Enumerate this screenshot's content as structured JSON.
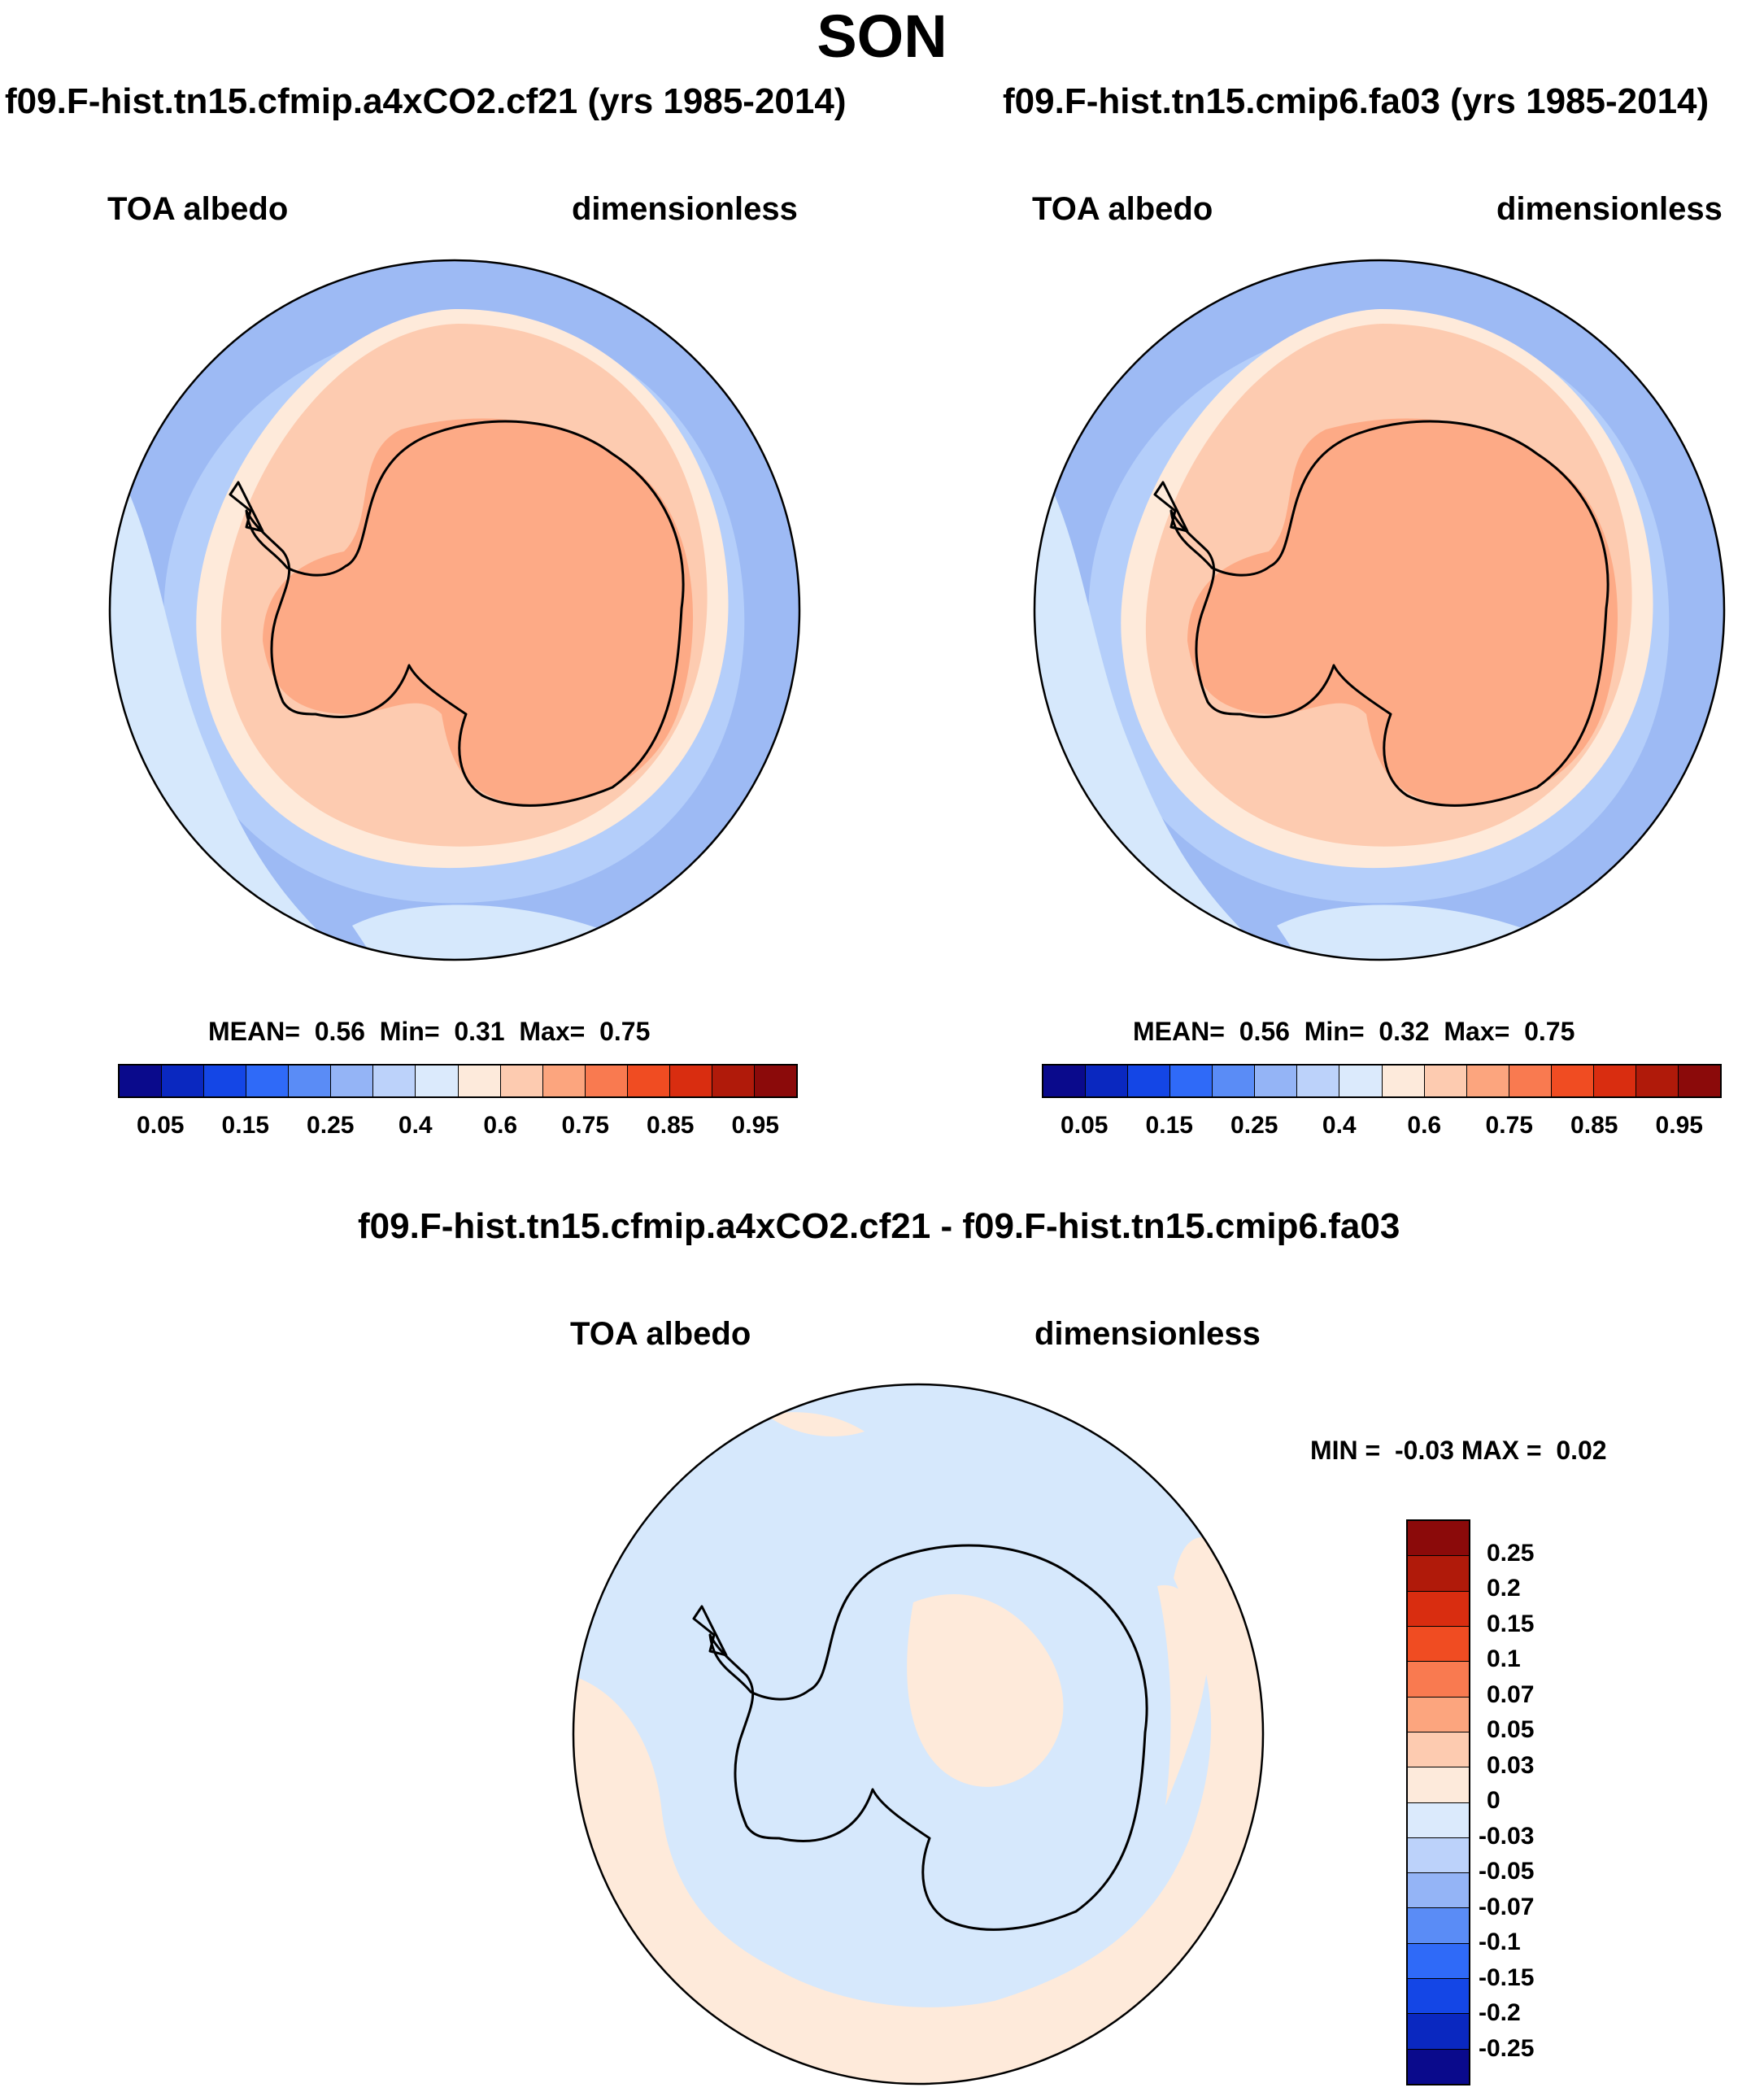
{
  "season": "SON",
  "colors": {
    "ice": "#fdaa86",
    "ice_edge": "#fdcbb0",
    "pale_orange": "#feeada",
    "pale_blue": "#d6e8fc",
    "light_blue": "#b4cefa",
    "mid_blue": "#9dbaf4",
    "coast": "#000000"
  },
  "panels": [
    {
      "title": "f09.F-hist.tn15.cfmip.a4xCO2.cf21 (yrs 1985-2014)",
      "variable": "TOA albedo",
      "units": "dimensionless",
      "stats": {
        "mean_label": "MEAN=",
        "mean": "0.56",
        "min_label": "Min=",
        "min": "0.31",
        "max_label": "Max=",
        "max": "0.75"
      }
    },
    {
      "title": "f09.F-hist.tn15.cmip6.fa03 (yrs 1985-2014)",
      "variable": "TOA albedo",
      "units": "dimensionless",
      "stats": {
        "mean_label": "MEAN=",
        "mean": "0.56",
        "min_label": "Min=",
        "min": "0.32",
        "max_label": "Max=",
        "max": "0.75"
      }
    }
  ],
  "abs_colorbar": {
    "colors": [
      "#0a0a8c",
      "#0a28c0",
      "#1446e6",
      "#2f6af8",
      "#5a8cf6",
      "#94b4f6",
      "#bcd2fa",
      "#dbeafc",
      "#fdeadb",
      "#fdcbb0",
      "#fca57e",
      "#f97a50",
      "#f04c22",
      "#d92d10",
      "#b01a0a",
      "#8b0a0a"
    ],
    "tick_labels": [
      "0.05",
      "0.15",
      "0.25",
      "0.4",
      "0.6",
      "0.75",
      "0.85",
      "0.95"
    ],
    "tick_positions": [
      1,
      3,
      5,
      7,
      9,
      11,
      13,
      15
    ]
  },
  "diff_panel": {
    "title": "f09.F-hist.tn15.cfmip.a4xCO2.cf21 - f09.F-hist.tn15.cmip6.fa03",
    "variable": "TOA albedo",
    "units": "dimensionless",
    "stats": {
      "min_label": "MIN =",
      "min": "-0.03",
      "max_label": "MAX =",
      "max": "0.02"
    },
    "colorbar": {
      "colors_top_to_bottom": [
        "#8b0a0a",
        "#b01a0a",
        "#d92d10",
        "#f04c22",
        "#f97a50",
        "#fca57e",
        "#fdcbb0",
        "#fdeadb",
        "#dbeafc",
        "#bcd2fa",
        "#94b4f6",
        "#5a8cf6",
        "#2f6af8",
        "#1446e6",
        "#0a28c0",
        "#0a0a8c"
      ],
      "tick_labels": [
        "0.25",
        "0.2",
        "0.15",
        "0.1",
        "0.07",
        "0.05",
        "0.03",
        "0",
        "-0.03",
        "-0.05",
        "-0.07",
        "-0.1",
        "-0.15",
        "-0.2",
        "-0.25"
      ]
    }
  }
}
